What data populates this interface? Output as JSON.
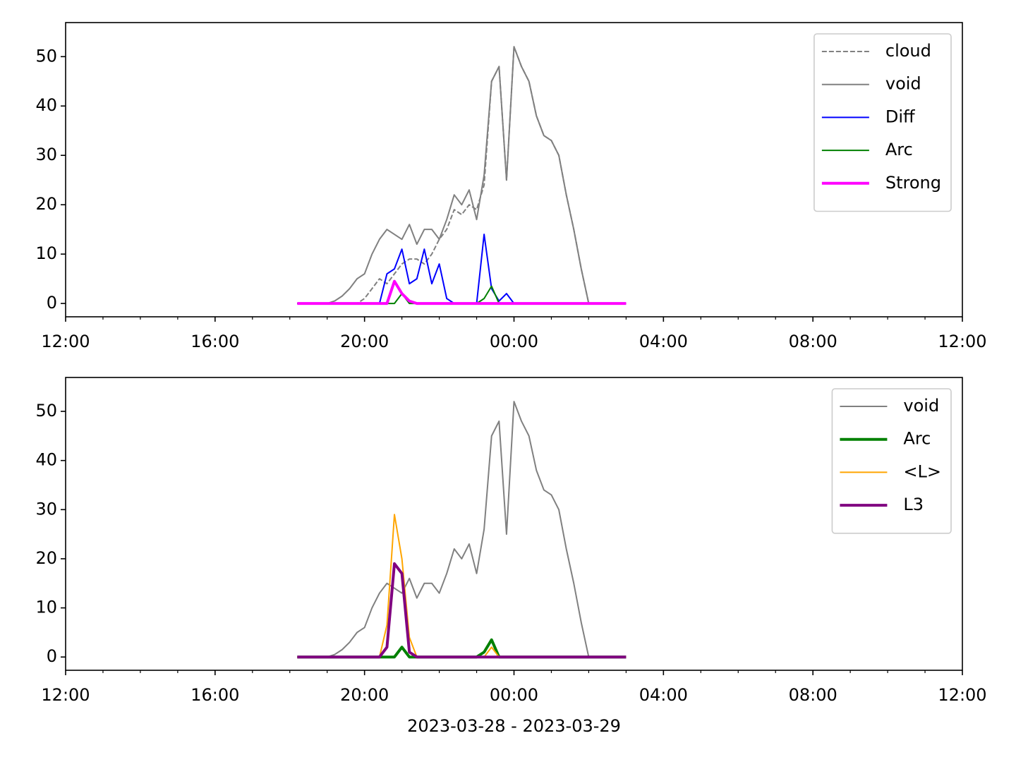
{
  "chart_data": [
    {
      "type": "line",
      "x": [
        18.2,
        18.4,
        18.6,
        18.8,
        19.0,
        19.2,
        19.4,
        19.6,
        19.8,
        20.0,
        20.2,
        20.4,
        20.6,
        20.8,
        21.0,
        21.2,
        21.4,
        21.6,
        21.8,
        22.0,
        22.2,
        22.4,
        22.6,
        22.8,
        23.0,
        23.2,
        23.4,
        23.6,
        23.8,
        24.0,
        24.2,
        24.4,
        24.6,
        24.8,
        25.0,
        25.2,
        25.4,
        25.6,
        25.8,
        26.0,
        26.2,
        26.4,
        26.6,
        26.8,
        27.0
      ],
      "series": [
        {
          "name": "cloud",
          "color": "#808080",
          "linewidth": 2,
          "linestyle": "dashed",
          "values": [
            0,
            0,
            0,
            0,
            0,
            0,
            0,
            0,
            0,
            1,
            3,
            5,
            4,
            6,
            8,
            9,
            9,
            8,
            10,
            13,
            15,
            19,
            18,
            20,
            19,
            24,
            45,
            48,
            25,
            52,
            48,
            45,
            38,
            34,
            33,
            30,
            22,
            15,
            7,
            0,
            0,
            0,
            0,
            0,
            0
          ]
        },
        {
          "name": "void",
          "color": "#808080",
          "linewidth": 2,
          "linestyle": "solid",
          "values": [
            0,
            0,
            0,
            0,
            0,
            0.5,
            1.5,
            3,
            5,
            6,
            10,
            13,
            15,
            14,
            13,
            16,
            12,
            15,
            15,
            13,
            17,
            22,
            20,
            23,
            17,
            26,
            45,
            48,
            25,
            52,
            48,
            45,
            38,
            34,
            33,
            30,
            22,
            15,
            7,
            0,
            0,
            0,
            0,
            0,
            0
          ]
        },
        {
          "name": "Diff",
          "color": "#0000ff",
          "linewidth": 2,
          "linestyle": "solid",
          "values": [
            0,
            0,
            0,
            0,
            0,
            0,
            0,
            0,
            0,
            0,
            0,
            0,
            6,
            7,
            11,
            4,
            5,
            11,
            4,
            8,
            1,
            0,
            0,
            0,
            0,
            14,
            3,
            0.5,
            2,
            0,
            0,
            0,
            0,
            0,
            0,
            0,
            0,
            0,
            0,
            0,
            0,
            0,
            0,
            0,
            0
          ]
        },
        {
          "name": "Arc",
          "color": "#008000",
          "linewidth": 2,
          "linestyle": "solid",
          "values": [
            0,
            0,
            0,
            0,
            0,
            0,
            0,
            0,
            0,
            0,
            0,
            0,
            0,
            0,
            2,
            0,
            0,
            0,
            0,
            0,
            0,
            0,
            0,
            0,
            0,
            1,
            3.5,
            0,
            0,
            0,
            0,
            0,
            0,
            0,
            0,
            0,
            0,
            0,
            0,
            0,
            0,
            0,
            0,
            0,
            0
          ]
        },
        {
          "name": "Strong",
          "color": "#ff00ff",
          "linewidth": 4,
          "linestyle": "solid",
          "values": [
            0,
            0,
            0,
            0,
            0,
            0,
            0,
            0,
            0,
            0,
            0,
            0,
            0,
            4.5,
            2,
            0.5,
            0,
            0,
            0,
            0,
            0,
            0,
            0,
            0,
            0,
            0,
            0,
            0,
            0,
            0,
            0,
            0,
            0,
            0,
            0,
            0,
            0,
            0,
            0,
            0,
            0,
            0,
            0,
            0,
            0
          ]
        }
      ],
      "xlim": [
        12,
        36
      ],
      "xticks": [
        {
          "value": 12,
          "label": "12:00"
        },
        {
          "value": 16,
          "label": "16:00"
        },
        {
          "value": 20,
          "label": "20:00"
        },
        {
          "value": 24,
          "label": "00:00"
        },
        {
          "value": 28,
          "label": "04:00"
        },
        {
          "value": 32,
          "label": "08:00"
        },
        {
          "value": 36,
          "label": "12:00"
        }
      ],
      "xminorticks": [
        13,
        14,
        15,
        17,
        18,
        19,
        21,
        22,
        23,
        25,
        26,
        27,
        29,
        30,
        31,
        33,
        34,
        35
      ],
      "ylim": [
        -2.7,
        56.9
      ],
      "yticks": [
        0,
        10,
        20,
        30,
        40,
        50
      ],
      "legend": "upper right"
    },
    {
      "type": "line",
      "x": [
        18.2,
        18.4,
        18.6,
        18.8,
        19.0,
        19.2,
        19.4,
        19.6,
        19.8,
        20.0,
        20.2,
        20.4,
        20.6,
        20.8,
        21.0,
        21.2,
        21.4,
        21.6,
        21.8,
        22.0,
        22.2,
        22.4,
        22.6,
        22.8,
        23.0,
        23.2,
        23.4,
        23.6,
        23.8,
        24.0,
        24.2,
        24.4,
        24.6,
        24.8,
        25.0,
        25.2,
        25.4,
        25.6,
        25.8,
        26.0,
        26.2,
        26.4,
        26.6,
        26.8,
        27.0
      ],
      "series": [
        {
          "name": "void",
          "color": "#808080",
          "linewidth": 2,
          "linestyle": "solid",
          "values": [
            0,
            0,
            0,
            0,
            0,
            0.5,
            1.5,
            3,
            5,
            6,
            10,
            13,
            15,
            14,
            13,
            16,
            12,
            15,
            15,
            13,
            17,
            22,
            20,
            23,
            17,
            26,
            45,
            48,
            25,
            52,
            48,
            45,
            38,
            34,
            33,
            30,
            22,
            15,
            7,
            0,
            0,
            0,
            0,
            0,
            0
          ]
        },
        {
          "name": "Arc",
          "color": "#008000",
          "linewidth": 4,
          "linestyle": "solid",
          "values": [
            0,
            0,
            0,
            0,
            0,
            0,
            0,
            0,
            0,
            0,
            0,
            0,
            0,
            0,
            2,
            0,
            0,
            0,
            0,
            0,
            0,
            0,
            0,
            0,
            0,
            1,
            3.5,
            0,
            0,
            0,
            0,
            0,
            0,
            0,
            0,
            0,
            0,
            0,
            0,
            0,
            0,
            0,
            0,
            0,
            0
          ]
        },
        {
          "name": "<L>",
          "color": "#ffa500",
          "linewidth": 2,
          "linestyle": "solid",
          "values": [
            0,
            0,
            0,
            0,
            0,
            0,
            0,
            0,
            0,
            0,
            0,
            0,
            6.5,
            29,
            20,
            4,
            0,
            0,
            0,
            0,
            0,
            0,
            0,
            0,
            0,
            0,
            2,
            0,
            0,
            0,
            0,
            0,
            0,
            0,
            0,
            0,
            0,
            0,
            0,
            0,
            0,
            0,
            0,
            0,
            0
          ]
        },
        {
          "name": "L3",
          "color": "#800080",
          "linewidth": 4,
          "linestyle": "solid",
          "values": [
            0,
            0,
            0,
            0,
            0,
            0,
            0,
            0,
            0,
            0,
            0,
            0,
            2,
            19,
            17,
            1,
            0,
            0,
            0,
            0,
            0,
            0,
            0,
            0,
            0,
            0,
            0,
            0,
            0,
            0,
            0,
            0,
            0,
            0,
            0,
            0,
            0,
            0,
            0,
            0,
            0,
            0,
            0,
            0,
            0
          ]
        }
      ],
      "xlabel": "2023-03-28 - 2023-03-29",
      "xlim": [
        12,
        36
      ],
      "xticks": [
        {
          "value": 12,
          "label": "12:00"
        },
        {
          "value": 16,
          "label": "16:00"
        },
        {
          "value": 20,
          "label": "20:00"
        },
        {
          "value": 24,
          "label": "00:00"
        },
        {
          "value": 28,
          "label": "04:00"
        },
        {
          "value": 32,
          "label": "08:00"
        },
        {
          "value": 36,
          "label": "12:00"
        }
      ],
      "xminorticks": [
        13,
        14,
        15,
        17,
        18,
        19,
        21,
        22,
        23,
        25,
        26,
        27,
        29,
        30,
        31,
        33,
        34,
        35
      ],
      "ylim": [
        -2.7,
        56.9
      ],
      "yticks": [
        0,
        10,
        20,
        30,
        40,
        50
      ],
      "legend": "upper right"
    }
  ]
}
